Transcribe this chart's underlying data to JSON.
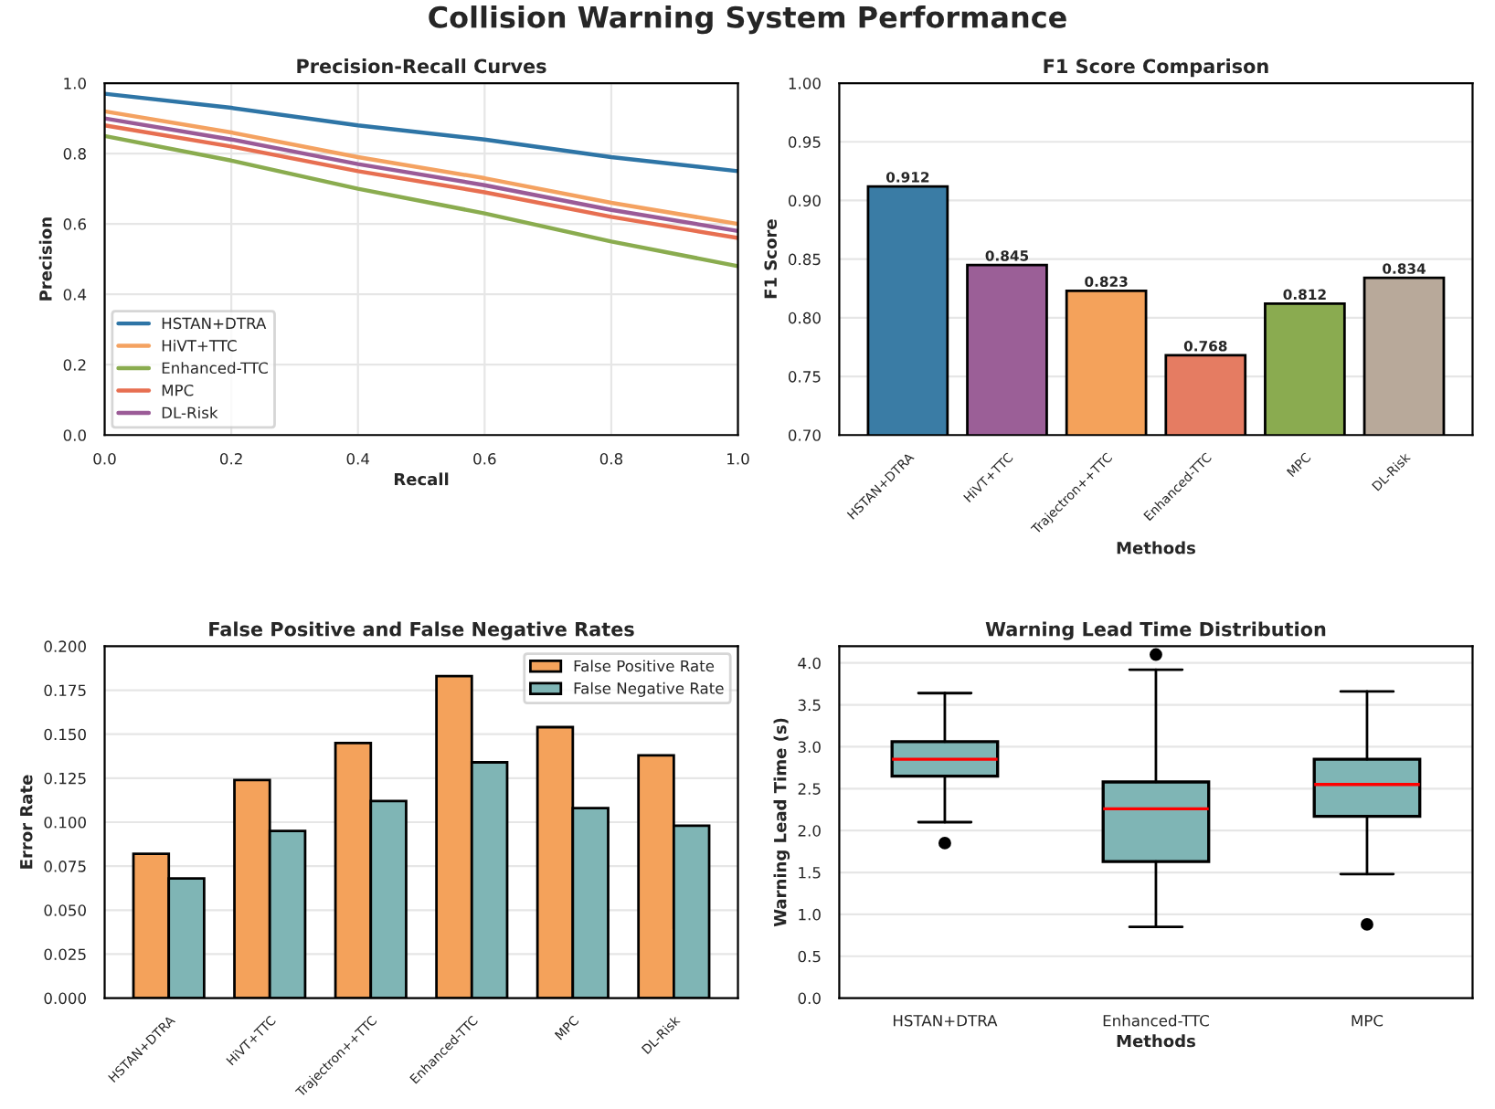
{
  "chart_data": [
    {
      "type": "line",
      "title": "Precision-Recall Curves",
      "annotations": [
        "Collision Warning System Performance"
      ],
      "xlabel": "Recall",
      "ylabel": "Precision",
      "xlim": [
        0,
        1
      ],
      "ylim": [
        0,
        1
      ],
      "xticks": [
        {
          "value": 0,
          "label": "0.0"
        },
        0.2,
        0.4,
        0.6,
        0.8,
        {
          "value": 1,
          "label": "1.0"
        }
      ],
      "yticks": [
        {
          "value": 0,
          "label": "0.0"
        },
        0.2,
        0.4,
        0.6,
        0.8,
        {
          "value": 1,
          "label": "1.0"
        }
      ],
      "grid": true,
      "legend": "bottom left",
      "line_style": "solid",
      "marker": "none",
      "series": [
        {
          "name": "HSTAN+DTRA",
          "color": "#2e75a6",
          "x": [
            0,
            0.2,
            0.4,
            0.6,
            0.8,
            1
          ],
          "values": [
            0.97,
            0.93,
            0.88,
            0.84,
            0.79,
            0.75
          ]
        },
        {
          "name": "HiVT+TTC",
          "color": "#f4a261",
          "x": [
            0,
            0.2,
            0.4,
            0.6,
            0.8,
            1
          ],
          "values": [
            0.92,
            0.86,
            0.79,
            0.73,
            0.66,
            0.6
          ]
        },
        {
          "name": "Enhanced-TTC",
          "color": "#8aac4f",
          "x": [
            0,
            0.2,
            0.4,
            0.6,
            0.8,
            1
          ],
          "values": [
            0.85,
            0.78,
            0.7,
            0.63,
            0.55,
            0.48
          ]
        },
        {
          "name": "MPC",
          "color": "#e76f51",
          "x": [
            0,
            0.2,
            0.4,
            0.6,
            0.8,
            1
          ],
          "values": [
            0.88,
            0.82,
            0.75,
            0.69,
            0.62,
            0.56
          ]
        },
        {
          "name": "DL-Risk",
          "color": "#9b5b97",
          "x": [
            0,
            0.2,
            0.4,
            0.6,
            0.8,
            1
          ],
          "values": [
            0.9,
            0.84,
            0.77,
            0.71,
            0.64,
            0.58
          ]
        }
      ]
    },
    {
      "type": "bar",
      "title": "F1 Score Comparison",
      "xlabel": "Methods",
      "ylabel": "F1 Score",
      "categories": [
        "HSTAN+DTRA",
        "HiVT+TTC",
        "Trajectron++TTC",
        "Enhanced-TTC",
        "MPC",
        "DL-Risk"
      ],
      "values": [
        0.912,
        0.845,
        0.823,
        0.768,
        0.812,
        0.834
      ],
      "colors": [
        "#3a7ca5",
        "#9b5f97",
        "#f4a25b",
        "#e57c62",
        "#8aab50",
        "#b8a99a"
      ],
      "data_labels": true,
      "ylim": [
        0.7,
        1.0
      ],
      "yticks": [
        {
          "value": 0.7,
          "label": "0.70"
        },
        0.75,
        {
          "value": 0.8,
          "label": "0.80"
        },
        0.85,
        {
          "value": 0.9,
          "label": "0.90"
        },
        0.95,
        {
          "value": 1.0,
          "label": "1.00"
        }
      ],
      "grid": "y"
    },
    {
      "type": "bar",
      "title": "False Positive and False Negative Rates",
      "ylabel": "Error Rate",
      "categories": [
        "HSTAN+DTRA",
        "HiVT+TTC",
        "Trajectron++TTC",
        "Enhanced-TTC",
        "MPC",
        "DL-Risk"
      ],
      "ylim": [
        0,
        0.2
      ],
      "yticks": [
        {
          "value": 0,
          "label": "0.000"
        },
        0.025,
        {
          "value": 0.05,
          "label": "0.050"
        },
        0.075,
        {
          "value": 0.1,
          "label": "0.100"
        },
        0.125,
        {
          "value": 0.15,
          "label": "0.150"
        },
        0.175,
        {
          "value": 0.2,
          "label": "0.200"
        }
      ],
      "grid": "y",
      "legend": "top right",
      "series": [
        {
          "name": "False Positive Rate",
          "color": "#f4a25b",
          "values": [
            0.082,
            0.124,
            0.145,
            0.183,
            0.154,
            0.138
          ]
        },
        {
          "name": "False Negative Rate",
          "color": "#7fb5b5",
          "values": [
            0.068,
            0.095,
            0.112,
            0.134,
            0.108,
            0.098
          ]
        }
      ]
    },
    {
      "type": "box",
      "title": "Warning Lead Time Distribution",
      "xlabel": "Methods",
      "ylabel": "Warning Lead Time (s)",
      "categories": [
        "HSTAN+DTRA",
        "Enhanced-TTC",
        "MPC"
      ],
      "color": "#7fb5b5",
      "ylim": [
        0,
        4.2
      ],
      "yticks": [
        {
          "value": 0,
          "label": "0.0"
        },
        0.5,
        {
          "value": 1,
          "label": "1.0"
        },
        1.5,
        {
          "value": 2,
          "label": "2.0"
        },
        2.5,
        {
          "value": 3,
          "label": "3.0"
        },
        3.5,
        {
          "value": 4,
          "label": "4.0"
        }
      ],
      "grid": "y",
      "boxes": [
        {
          "low": 2.1,
          "q1": 2.65,
          "median": 2.85,
          "q3": 3.06,
          "high": 3.64,
          "outliers": [
            1.85
          ]
        },
        {
          "low": 0.85,
          "q1": 1.63,
          "median": 2.26,
          "q3": 2.58,
          "high": 3.92,
          "outliers": [
            4.1
          ]
        },
        {
          "low": 1.48,
          "q1": 2.17,
          "median": 2.55,
          "q3": 2.85,
          "high": 3.66,
          "outliers": [
            0.88
          ]
        }
      ]
    }
  ]
}
